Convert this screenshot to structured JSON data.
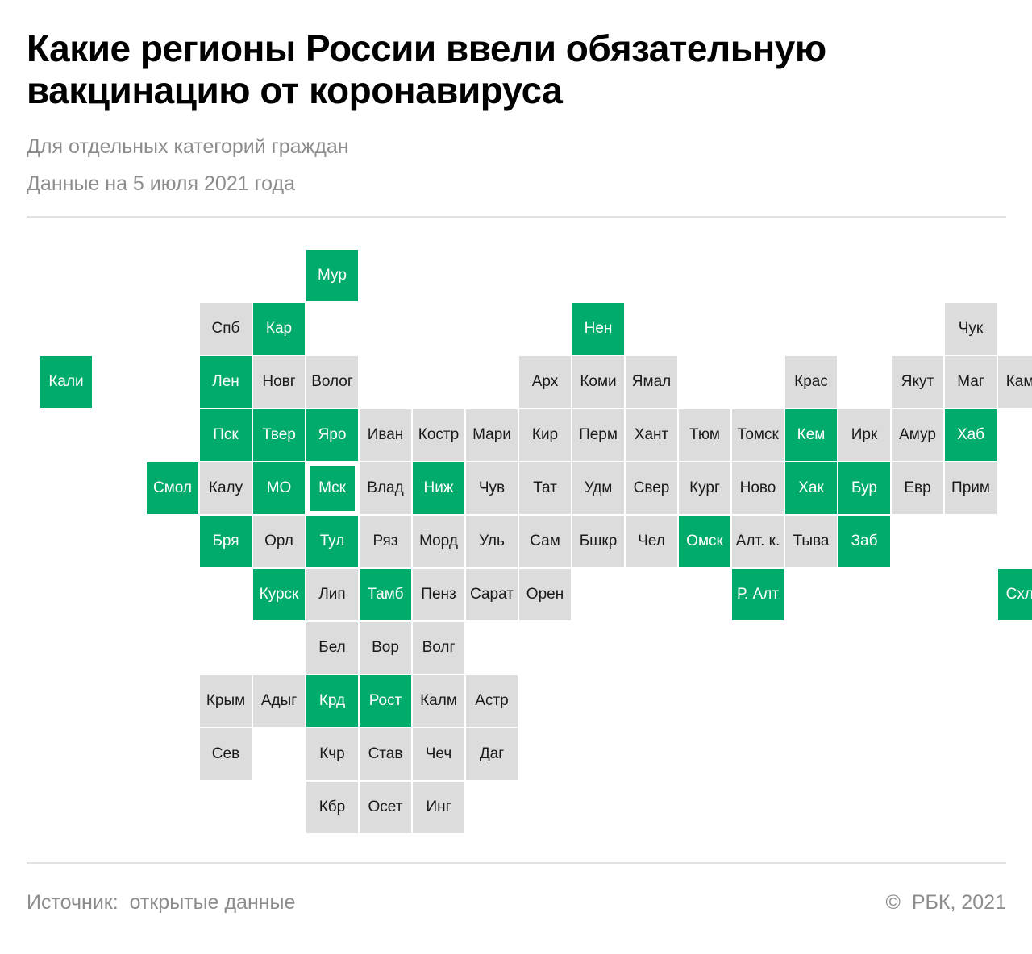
{
  "header": {
    "title": "Какие регионы России ввели обязательную вакцинацию от коронавируса",
    "subtitle": "Для отдельных категорий граждан",
    "date_note": "Данные на 5 июля 2021 года"
  },
  "colors": {
    "mandatory": "#00ab6c",
    "other": "#dcdcdc"
  },
  "map": {
    "regions": [
      {
        "label": "Мур",
        "mandatory": true,
        "col": 5,
        "row": 0
      },
      {
        "label": "Спб",
        "mandatory": false,
        "col": 3,
        "row": 1
      },
      {
        "label": "Кар",
        "mandatory": true,
        "col": 4,
        "row": 1
      },
      {
        "label": "Нен",
        "mandatory": true,
        "col": 10,
        "row": 1
      },
      {
        "label": "Чук",
        "mandatory": false,
        "col": 17,
        "row": 1
      },
      {
        "label": "Кали",
        "mandatory": true,
        "col": 0,
        "row": 2
      },
      {
        "label": "Лен",
        "mandatory": true,
        "col": 3,
        "row": 2
      },
      {
        "label": "Новг",
        "mandatory": false,
        "col": 4,
        "row": 2
      },
      {
        "label": "Волог",
        "mandatory": false,
        "col": 5,
        "row": 2
      },
      {
        "label": "Арх",
        "mandatory": false,
        "col": 9,
        "row": 2
      },
      {
        "label": "Коми",
        "mandatory": false,
        "col": 10,
        "row": 2
      },
      {
        "label": "Ямал",
        "mandatory": false,
        "col": 11,
        "row": 2
      },
      {
        "label": "Крас",
        "mandatory": false,
        "col": 14,
        "row": 2
      },
      {
        "label": "Якут",
        "mandatory": false,
        "col": 16,
        "row": 2
      },
      {
        "label": "Маг",
        "mandatory": false,
        "col": 17,
        "row": 2
      },
      {
        "label": "Камч",
        "mandatory": false,
        "col": 18,
        "row": 2
      },
      {
        "label": "Пск",
        "mandatory": true,
        "col": 3,
        "row": 3
      },
      {
        "label": "Твер",
        "mandatory": true,
        "col": 4,
        "row": 3
      },
      {
        "label": "Яро",
        "mandatory": true,
        "col": 5,
        "row": 3
      },
      {
        "label": "Иван",
        "mandatory": false,
        "col": 6,
        "row": 3
      },
      {
        "label": "Костр",
        "mandatory": false,
        "col": 7,
        "row": 3
      },
      {
        "label": "Мари",
        "mandatory": false,
        "col": 8,
        "row": 3
      },
      {
        "label": "Кир",
        "mandatory": false,
        "col": 9,
        "row": 3
      },
      {
        "label": "Перм",
        "mandatory": false,
        "col": 10,
        "row": 3
      },
      {
        "label": "Хант",
        "mandatory": false,
        "col": 11,
        "row": 3
      },
      {
        "label": "Тюм",
        "mandatory": false,
        "col": 12,
        "row": 3
      },
      {
        "label": "Томск",
        "mandatory": false,
        "col": 13,
        "row": 3
      },
      {
        "label": "Кем",
        "mandatory": true,
        "col": 14,
        "row": 3
      },
      {
        "label": "Ирк",
        "mandatory": false,
        "col": 15,
        "row": 3
      },
      {
        "label": "Амур",
        "mandatory": false,
        "col": 16,
        "row": 3
      },
      {
        "label": "Хаб",
        "mandatory": true,
        "col": 17,
        "row": 3
      },
      {
        "label": "Смол",
        "mandatory": true,
        "col": 2,
        "row": 4
      },
      {
        "label": "Калу",
        "mandatory": false,
        "col": 3,
        "row": 4
      },
      {
        "label": "МО",
        "mandatory": true,
        "col": 4,
        "row": 4
      },
      {
        "label": "Мск",
        "mandatory": true,
        "col": 5,
        "row": 4,
        "capital": true
      },
      {
        "label": "Влад",
        "mandatory": false,
        "col": 6,
        "row": 4
      },
      {
        "label": "Ниж",
        "mandatory": true,
        "col": 7,
        "row": 4
      },
      {
        "label": "Чув",
        "mandatory": false,
        "col": 8,
        "row": 4
      },
      {
        "label": "Тат",
        "mandatory": false,
        "col": 9,
        "row": 4
      },
      {
        "label": "Удм",
        "mandatory": false,
        "col": 10,
        "row": 4
      },
      {
        "label": "Свер",
        "mandatory": false,
        "col": 11,
        "row": 4
      },
      {
        "label": "Кург",
        "mandatory": false,
        "col": 12,
        "row": 4
      },
      {
        "label": "Ново",
        "mandatory": false,
        "col": 13,
        "row": 4
      },
      {
        "label": "Хак",
        "mandatory": true,
        "col": 14,
        "row": 4
      },
      {
        "label": "Бур",
        "mandatory": true,
        "col": 15,
        "row": 4
      },
      {
        "label": "Евр",
        "mandatory": false,
        "col": 16,
        "row": 4
      },
      {
        "label": "Прим",
        "mandatory": false,
        "col": 17,
        "row": 4
      },
      {
        "label": "Бря",
        "mandatory": true,
        "col": 3,
        "row": 5
      },
      {
        "label": "Орл",
        "mandatory": false,
        "col": 4,
        "row": 5
      },
      {
        "label": "Тул",
        "mandatory": true,
        "col": 5,
        "row": 5
      },
      {
        "label": "Ряз",
        "mandatory": false,
        "col": 6,
        "row": 5
      },
      {
        "label": "Морд",
        "mandatory": false,
        "col": 7,
        "row": 5
      },
      {
        "label": "Уль",
        "mandatory": false,
        "col": 8,
        "row": 5
      },
      {
        "label": "Сам",
        "mandatory": false,
        "col": 9,
        "row": 5
      },
      {
        "label": "Бшкр",
        "mandatory": false,
        "col": 10,
        "row": 5
      },
      {
        "label": "Чел",
        "mandatory": false,
        "col": 11,
        "row": 5
      },
      {
        "label": "Омск",
        "mandatory": true,
        "col": 12,
        "row": 5
      },
      {
        "label": "Алт. к.",
        "mandatory": false,
        "col": 13,
        "row": 5
      },
      {
        "label": "Тыва",
        "mandatory": false,
        "col": 14,
        "row": 5
      },
      {
        "label": "Заб",
        "mandatory": true,
        "col": 15,
        "row": 5
      },
      {
        "label": "Курск",
        "mandatory": true,
        "col": 4,
        "row": 6
      },
      {
        "label": "Лип",
        "mandatory": false,
        "col": 5,
        "row": 6
      },
      {
        "label": "Тамб",
        "mandatory": true,
        "col": 6,
        "row": 6
      },
      {
        "label": "Пенз",
        "mandatory": false,
        "col": 7,
        "row": 6
      },
      {
        "label": "Сарат",
        "mandatory": false,
        "col": 8,
        "row": 6
      },
      {
        "label": "Орен",
        "mandatory": false,
        "col": 9,
        "row": 6
      },
      {
        "label": "Р. Алт",
        "mandatory": true,
        "col": 13,
        "row": 6
      },
      {
        "label": "Схлн",
        "mandatory": true,
        "col": 18,
        "row": 6
      },
      {
        "label": "Бел",
        "mandatory": false,
        "col": 5,
        "row": 7
      },
      {
        "label": "Вор",
        "mandatory": false,
        "col": 6,
        "row": 7
      },
      {
        "label": "Волг",
        "mandatory": false,
        "col": 7,
        "row": 7
      },
      {
        "label": "Крым",
        "mandatory": false,
        "col": 3,
        "row": 8
      },
      {
        "label": "Адыг",
        "mandatory": false,
        "col": 4,
        "row": 8
      },
      {
        "label": "Крд",
        "mandatory": true,
        "col": 5,
        "row": 8
      },
      {
        "label": "Рост",
        "mandatory": true,
        "col": 6,
        "row": 8
      },
      {
        "label": "Калм",
        "mandatory": false,
        "col": 7,
        "row": 8
      },
      {
        "label": "Астр",
        "mandatory": false,
        "col": 8,
        "row": 8
      },
      {
        "label": "Сев",
        "mandatory": false,
        "col": 3,
        "row": 9
      },
      {
        "label": "Кчр",
        "mandatory": false,
        "col": 5,
        "row": 9
      },
      {
        "label": "Став",
        "mandatory": false,
        "col": 6,
        "row": 9
      },
      {
        "label": "Чеч",
        "mandatory": false,
        "col": 7,
        "row": 9
      },
      {
        "label": "Даг",
        "mandatory": false,
        "col": 8,
        "row": 9
      },
      {
        "label": "Кбр",
        "mandatory": false,
        "col": 5,
        "row": 10
      },
      {
        "label": "Осет",
        "mandatory": false,
        "col": 6,
        "row": 10
      },
      {
        "label": "Инг",
        "mandatory": false,
        "col": 7,
        "row": 10
      }
    ]
  },
  "footer": {
    "source": "Источник:  открытые данные",
    "copyright": "©  РБК, 2021"
  }
}
